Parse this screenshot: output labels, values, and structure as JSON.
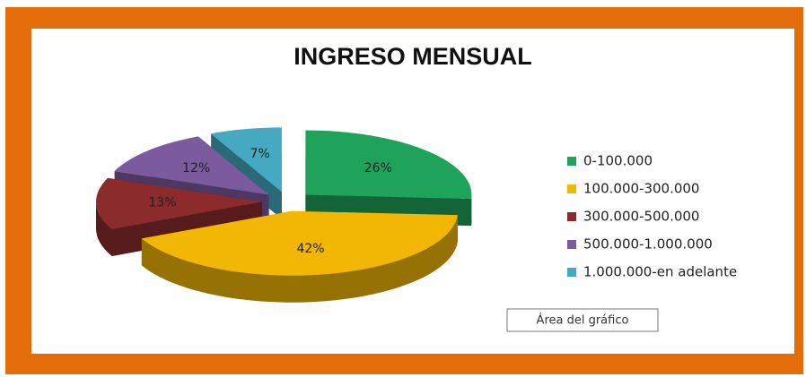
{
  "chart_data": {
    "type": "pie",
    "title": "INGRESO MENSUAL",
    "categories": [
      "0-100.000",
      "100.000-300.000",
      "300.000-500.000",
      "500.000-1.000.000",
      "1.000.000-en adelante"
    ],
    "values": [
      26,
      42,
      13,
      12,
      7
    ],
    "value_labels": [
      "26%",
      "42%",
      "13%",
      "12%",
      "7%"
    ],
    "colors": [
      "#1fa35a",
      "#f2b705",
      "#8c2b2b",
      "#7b5a9e",
      "#46a9c2"
    ],
    "legend": "right",
    "tooltip": "Área del gráfico"
  }
}
